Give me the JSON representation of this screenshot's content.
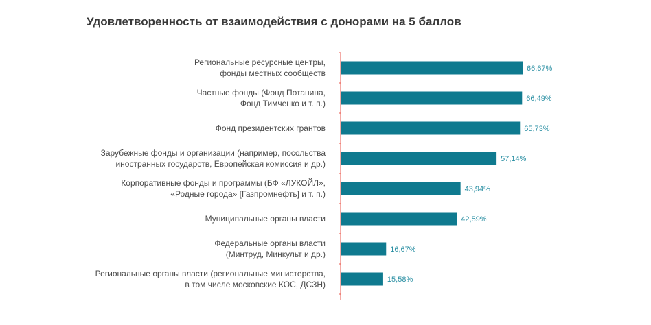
{
  "chart_data": {
    "type": "bar",
    "orientation": "horizontal",
    "title": "Удовлетворенность от взаимодействия с донорами на 5 баллов",
    "categories": [
      [
        "Региональные ресурсные центры,",
        "фонды местных сообществ"
      ],
      [
        "Частные фонды (Фонд Потанина,",
        "Фонд Тимченко и т. п.)"
      ],
      [
        "Фонд президентских грантов"
      ],
      [
        "Зарубежные фонды и организации (например, посольства",
        "иностранных государств, Европейская комиссия и др.)"
      ],
      [
        "Корпоративные фонды и программы (БФ «ЛУКОЙЛ»,",
        "«Родные города» [Газпромнефть] и т. п.)"
      ],
      [
        "Муниципальные органы власти"
      ],
      [
        "Федеральные органы власти",
        "(Минтруд, Минкульт и др.)"
      ],
      [
        "Региональные органы власти (региональные министерства,",
        "в том числе московские КОС, ДСЗН)"
      ]
    ],
    "values": [
      66.67,
      66.49,
      65.73,
      57.14,
      43.94,
      42.59,
      16.67,
      15.58
    ],
    "value_labels": [
      "66,67%",
      "66,49%",
      "65,73%",
      "57,14%",
      "43,94%",
      "42,59%",
      "16,67%",
      "15,58%"
    ],
    "xlim": [
      0,
      100
    ],
    "grid": false,
    "colors": {
      "bar": "#0f7a8f",
      "axis": "#e8574c",
      "value_label": "#2a8fa3",
      "title": "#3a3a3a",
      "label": "#4a4a4a"
    }
  }
}
